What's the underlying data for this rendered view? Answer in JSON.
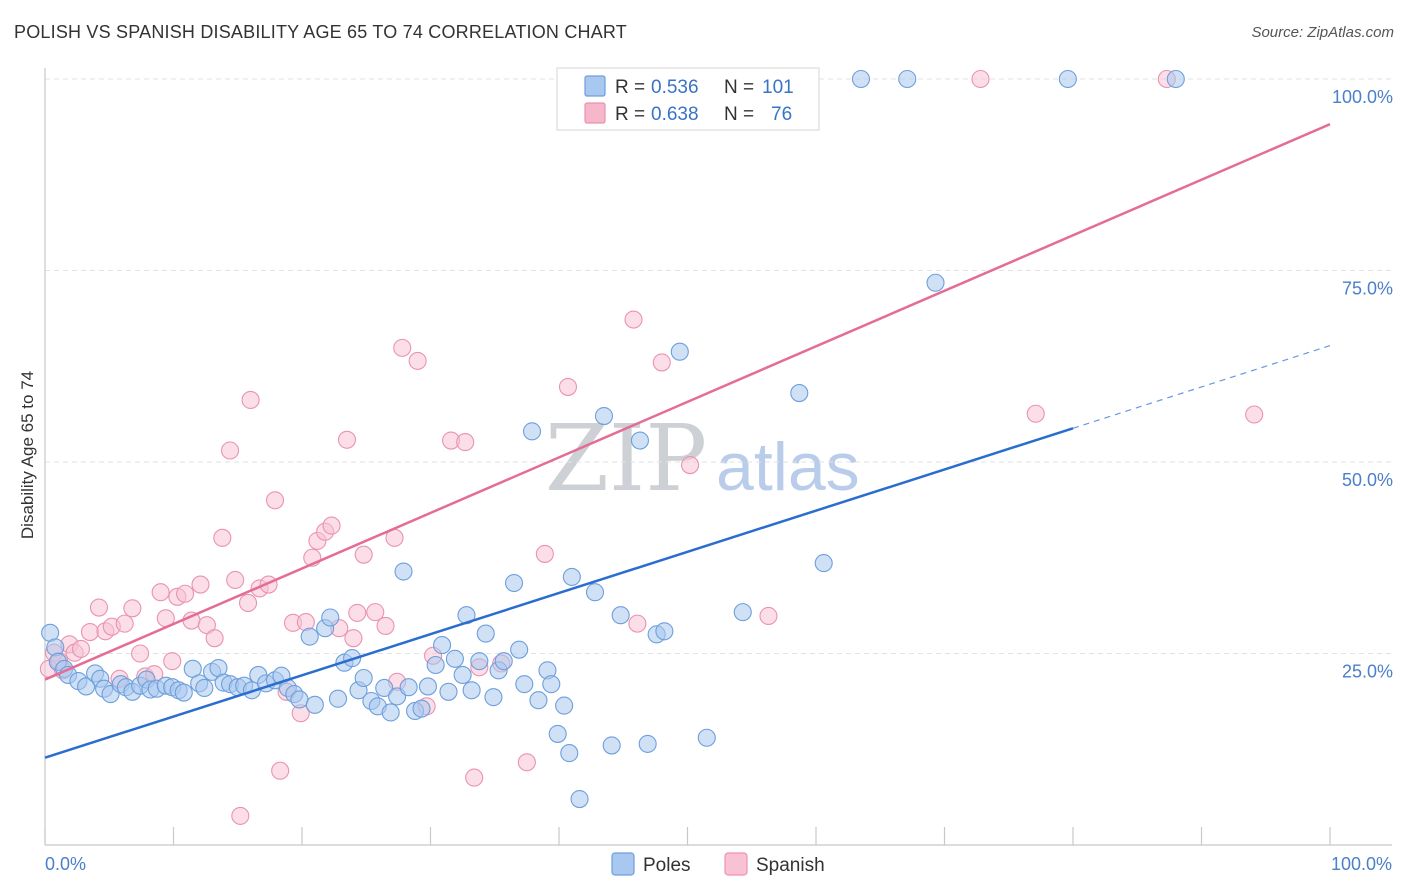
{
  "header": {
    "title": "POLISH VS SPANISH DISABILITY AGE 65 TO 74 CORRELATION CHART",
    "source": "Source: ZipAtlas.com"
  },
  "watermark": {
    "zip": "ZIP",
    "atlas": "atlas"
  },
  "legend": {
    "rows": [
      {
        "r_label": "R =",
        "r_value": "0.536",
        "n_label": "N =",
        "n_value": "101",
        "color": "#a9c8ef"
      },
      {
        "r_label": "R =",
        "r_value": "0.638",
        "n_label": "N =",
        "n_value": "76",
        "color": "#f6b7cb"
      }
    ]
  },
  "bottom_legend": {
    "items": [
      "Poles",
      "Spanish"
    ]
  },
  "colors": {
    "poles_fill": "#a9c8ef",
    "poles_stroke": "#6d9fdc",
    "poles_line": "#2a6dcf",
    "spanish_fill": "#f8c2d3",
    "spanish_stroke": "#ea93b1",
    "spanish_line": "#e46c95"
  },
  "chart_data": {
    "type": "scatter",
    "title": "POLISH VS SPANISH DISABILITY AGE 65 TO 74 CORRELATION CHART",
    "xlabel": "",
    "ylabel": "Disability Age 65 to 74",
    "xlim": [
      0,
      100
    ],
    "ylim": [
      0,
      100
    ],
    "x_tick_labels": [
      "0.0%",
      "100.0%"
    ],
    "y_ticks": [
      25,
      50,
      75,
      100
    ],
    "y_tick_labels": [
      "25.0%",
      "50.0%",
      "75.0%",
      "100.0%"
    ],
    "grid": true,
    "legend_position": "top-center",
    "series": [
      {
        "name": "Poles",
        "trend": {
          "x0": 0,
          "y0": 11.4,
          "x1": 80,
          "y1": 54.4,
          "dashed_to_x": 100,
          "dashed_to_y": 65.2
        },
        "points": [
          [
            0.4,
            27.7
          ],
          [
            0.8,
            25.8
          ],
          [
            1.0,
            23.9
          ],
          [
            1.5,
            23.0
          ],
          [
            1.8,
            22.2
          ],
          [
            2.6,
            21.4
          ],
          [
            3.2,
            20.7
          ],
          [
            3.9,
            22.4
          ],
          [
            4.3,
            21.7
          ],
          [
            4.6,
            20.4
          ],
          [
            5.1,
            19.7
          ],
          [
            5.9,
            21.0
          ],
          [
            6.3,
            20.6
          ],
          [
            6.8,
            20.0
          ],
          [
            7.4,
            20.8
          ],
          [
            7.9,
            21.6
          ],
          [
            8.2,
            20.3
          ],
          [
            8.7,
            20.4
          ],
          [
            9.4,
            20.8
          ],
          [
            9.9,
            20.6
          ],
          [
            10.4,
            20.2
          ],
          [
            10.8,
            19.9
          ],
          [
            11.5,
            23.0
          ],
          [
            12.0,
            21.1
          ],
          [
            12.4,
            20.5
          ],
          [
            13.0,
            22.6
          ],
          [
            13.5,
            23.1
          ],
          [
            13.9,
            21.2
          ],
          [
            14.4,
            21.0
          ],
          [
            15.0,
            20.6
          ],
          [
            15.5,
            20.8
          ],
          [
            16.1,
            20.2
          ],
          [
            16.6,
            22.2
          ],
          [
            17.2,
            21.1
          ],
          [
            17.9,
            21.5
          ],
          [
            18.4,
            22.1
          ],
          [
            18.9,
            20.5
          ],
          [
            19.4,
            19.7
          ],
          [
            19.8,
            19.0
          ],
          [
            20.6,
            27.2
          ],
          [
            21.0,
            18.3
          ],
          [
            21.8,
            28.3
          ],
          [
            22.2,
            29.7
          ],
          [
            22.8,
            19.1
          ],
          [
            23.3,
            23.8
          ],
          [
            23.9,
            24.4
          ],
          [
            24.4,
            20.2
          ],
          [
            24.8,
            21.8
          ],
          [
            25.4,
            18.8
          ],
          [
            25.9,
            18.1
          ],
          [
            26.4,
            20.5
          ],
          [
            26.9,
            17.3
          ],
          [
            27.4,
            19.4
          ],
          [
            27.9,
            35.7
          ],
          [
            28.3,
            20.6
          ],
          [
            28.8,
            17.5
          ],
          [
            29.3,
            17.8
          ],
          [
            29.8,
            20.7
          ],
          [
            30.4,
            23.5
          ],
          [
            30.9,
            26.1
          ],
          [
            31.4,
            20.0
          ],
          [
            31.9,
            24.3
          ],
          [
            32.5,
            22.2
          ],
          [
            32.8,
            30.0
          ],
          [
            33.2,
            20.2
          ],
          [
            33.8,
            24.0
          ],
          [
            34.3,
            27.6
          ],
          [
            34.9,
            19.3
          ],
          [
            35.3,
            22.8
          ],
          [
            35.7,
            24.0
          ],
          [
            36.5,
            34.2
          ],
          [
            36.9,
            25.5
          ],
          [
            37.3,
            21.0
          ],
          [
            37.9,
            54.0
          ],
          [
            38.4,
            18.9
          ],
          [
            39.1,
            22.8
          ],
          [
            39.4,
            21.0
          ],
          [
            39.9,
            14.5
          ],
          [
            40.4,
            18.2
          ],
          [
            40.8,
            12.0
          ],
          [
            41.0,
            35.0
          ],
          [
            41.6,
            6.0
          ],
          [
            42.8,
            33.0
          ],
          [
            43.5,
            56.0
          ],
          [
            44.1,
            13.0
          ],
          [
            44.8,
            30.0
          ],
          [
            46.3,
            52.8
          ],
          [
            46.9,
            13.2
          ],
          [
            47.6,
            27.5
          ],
          [
            48.2,
            27.9
          ],
          [
            49.4,
            64.4
          ],
          [
            51.5,
            14.0
          ],
          [
            54.3,
            30.4
          ],
          [
            57.0,
            100.0
          ],
          [
            58.7,
            59.0
          ],
          [
            60.6,
            36.8
          ],
          [
            63.5,
            100.0
          ],
          [
            67.1,
            100.0
          ],
          [
            69.3,
            73.4
          ],
          [
            79.6,
            100.0
          ],
          [
            88.0,
            100.0
          ]
        ]
      },
      {
        "name": "Spanish",
        "trend": {
          "x0": 0,
          "y0": 21.6,
          "x1": 100,
          "y1": 94.1
        },
        "points": [
          [
            0.3,
            23.0
          ],
          [
            0.7,
            25.1
          ],
          [
            1.1,
            24.0
          ],
          [
            1.4,
            22.8
          ],
          [
            1.9,
            26.2
          ],
          [
            2.3,
            25.1
          ],
          [
            2.8,
            25.6
          ],
          [
            3.5,
            27.8
          ],
          [
            4.2,
            31.0
          ],
          [
            4.7,
            27.9
          ],
          [
            5.2,
            28.5
          ],
          [
            5.8,
            21.7
          ],
          [
            6.2,
            28.9
          ],
          [
            6.8,
            30.9
          ],
          [
            7.4,
            25.0
          ],
          [
            7.8,
            22.0
          ],
          [
            8.5,
            22.3
          ],
          [
            9.0,
            33.0
          ],
          [
            9.4,
            29.6
          ],
          [
            9.9,
            24.0
          ],
          [
            10.3,
            32.4
          ],
          [
            10.9,
            32.8
          ],
          [
            11.4,
            29.3
          ],
          [
            12.1,
            34.0
          ],
          [
            12.6,
            28.7
          ],
          [
            13.2,
            27.0
          ],
          [
            13.8,
            40.1
          ],
          [
            14.4,
            51.5
          ],
          [
            14.8,
            34.6
          ],
          [
            15.2,
            3.8
          ],
          [
            15.8,
            31.6
          ],
          [
            16.0,
            58.1
          ],
          [
            16.7,
            33.5
          ],
          [
            17.4,
            34.0
          ],
          [
            17.9,
            45.0
          ],
          [
            18.3,
            9.7
          ],
          [
            18.8,
            20.0
          ],
          [
            19.3,
            29.0
          ],
          [
            19.9,
            17.2
          ],
          [
            20.3,
            29.1
          ],
          [
            20.8,
            37.5
          ],
          [
            21.2,
            39.7
          ],
          [
            21.8,
            40.9
          ],
          [
            22.3,
            41.7
          ],
          [
            22.9,
            28.3
          ],
          [
            23.5,
            52.9
          ],
          [
            24.0,
            27.0
          ],
          [
            24.3,
            30.3
          ],
          [
            24.8,
            37.9
          ],
          [
            25.7,
            30.4
          ],
          [
            26.5,
            28.6
          ],
          [
            27.2,
            40.1
          ],
          [
            27.4,
            21.3
          ],
          [
            27.8,
            64.9
          ],
          [
            29.0,
            63.2
          ],
          [
            29.7,
            18.1
          ],
          [
            30.2,
            24.7
          ],
          [
            31.6,
            52.8
          ],
          [
            32.7,
            52.6
          ],
          [
            33.4,
            8.8
          ],
          [
            33.8,
            23.2
          ],
          [
            35.5,
            23.7
          ],
          [
            37.5,
            10.8
          ],
          [
            38.9,
            38.0
          ],
          [
            40.7,
            59.8
          ],
          [
            45.8,
            68.6
          ],
          [
            46.1,
            28.9
          ],
          [
            48.0,
            63.0
          ],
          [
            50.2,
            49.6
          ],
          [
            52.0,
            100.0
          ],
          [
            55.0,
            100.0
          ],
          [
            56.3,
            29.9
          ],
          [
            72.8,
            100.0
          ],
          [
            77.1,
            56.3
          ],
          [
            87.3,
            100.0
          ],
          [
            94.1,
            56.2
          ]
        ]
      }
    ]
  }
}
